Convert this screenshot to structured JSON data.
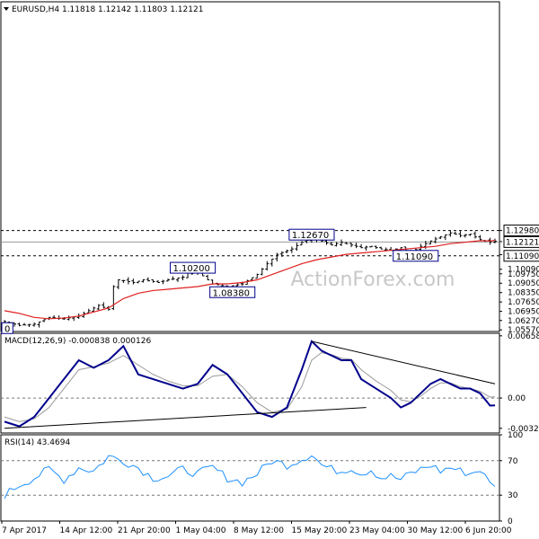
{
  "chart_data": [
    {
      "type": "candlestick",
      "title": "EURUSD,H4 1.11818 1.12142 1.11803 1.12121",
      "title_prefix_icon": "triangle-down-icon",
      "ylim": [
        1.0545,
        1.3003
      ],
      "price_ticks": [
        "1.12980",
        "1.12150",
        "1.11180",
        "1.10090",
        "1.09750",
        "1.09050",
        "1.08350",
        "1.07650",
        "1.06950",
        "1.06270",
        "1.05570"
      ],
      "current_price_tag": "1.12121",
      "key_levels": [
        "1.12980",
        "1.11090"
      ],
      "ma_color": "#e02020",
      "price_color": "#000000",
      "annotations": [
        {
          "label": "1.12670",
          "x": 62,
          "price": 1.1267
        },
        {
          "label": "1.11090",
          "x": 83,
          "price": 1.1109
        },
        {
          "label": "1.10200",
          "x": 38,
          "price": 1.102
        },
        {
          "label": "1.08380",
          "x": 46,
          "price": 1.0838
        },
        {
          "label": "0",
          "x": 0,
          "price": 1.057
        }
      ],
      "watermark": "ActionForex.com",
      "close_anchors": [
        [
          0,
          1.062
        ],
        [
          3,
          1.059
        ],
        [
          6,
          1.06
        ],
        [
          9,
          1.065
        ],
        [
          12,
          1.064
        ],
        [
          15,
          1.066
        ],
        [
          17,
          1.07
        ],
        [
          19,
          1.074
        ],
        [
          21,
          1.071
        ],
        [
          22,
          1.088
        ],
        [
          23,
          1.093
        ],
        [
          26,
          1.091
        ],
        [
          28,
          1.093
        ],
        [
          31,
          1.091
        ],
        [
          33,
          1.093
        ],
        [
          36,
          1.095
        ],
        [
          38,
          1.101
        ],
        [
          40,
          1.096
        ],
        [
          42,
          1.09
        ],
        [
          45,
          1.088
        ],
        [
          48,
          1.09
        ],
        [
          51,
          1.097
        ],
        [
          53,
          1.105
        ],
        [
          55,
          1.112
        ],
        [
          58,
          1.116
        ],
        [
          60,
          1.121
        ],
        [
          62,
          1.124
        ],
        [
          64,
          1.122
        ],
        [
          66,
          1.119
        ],
        [
          68,
          1.121
        ],
        [
          70,
          1.119
        ],
        [
          72,
          1.117
        ],
        [
          74,
          1.118
        ],
        [
          76,
          1.116
        ],
        [
          78,
          1.115
        ],
        [
          80,
          1.117
        ],
        [
          82,
          1.113
        ],
        [
          84,
          1.118
        ],
        [
          86,
          1.122
        ],
        [
          88,
          1.125
        ],
        [
          90,
          1.128
        ],
        [
          92,
          1.126
        ],
        [
          94,
          1.127
        ],
        [
          96,
          1.123
        ],
        [
          98,
          1.1212
        ]
      ],
      "ma_anchors": [
        [
          0,
          1.07
        ],
        [
          3,
          1.068
        ],
        [
          6,
          1.065
        ],
        [
          9,
          1.064
        ],
        [
          12,
          1.0645
        ],
        [
          15,
          1.066
        ],
        [
          18,
          1.069
        ],
        [
          21,
          1.072
        ],
        [
          24,
          1.079
        ],
        [
          27,
          1.083
        ],
        [
          30,
          1.085
        ],
        [
          33,
          1.086
        ],
        [
          36,
          1.087
        ],
        [
          39,
          1.088
        ],
        [
          42,
          1.09
        ],
        [
          45,
          1.09
        ],
        [
          48,
          1.091
        ],
        [
          51,
          1.093
        ],
        [
          54,
          1.097
        ],
        [
          57,
          1.101
        ],
        [
          60,
          1.105
        ],
        [
          63,
          1.108
        ],
        [
          66,
          1.11
        ],
        [
          69,
          1.112
        ],
        [
          72,
          1.113
        ],
        [
          75,
          1.114
        ],
        [
          78,
          1.115
        ],
        [
          81,
          1.116
        ],
        [
          84,
          1.117
        ],
        [
          87,
          1.118
        ],
        [
          90,
          1.12
        ],
        [
          93,
          1.121
        ],
        [
          96,
          1.1222
        ],
        [
          98,
          1.122
        ]
      ]
    },
    {
      "type": "line",
      "title": "MACD(12,26,9) -0.000838 0.000126",
      "ylim": [
        -0.0037,
        0.00685
      ],
      "ticks": [
        "0.006581",
        "0.00",
        "-0.003208"
      ],
      "main_color": "#00008b",
      "signal_color": "#9a9a9a",
      "trendline_color": "#000000",
      "main_anchors": [
        [
          0,
          -0.0025
        ],
        [
          3,
          -0.003
        ],
        [
          6,
          -0.002
        ],
        [
          9,
          0.0
        ],
        [
          12,
          0.002
        ],
        [
          15,
          0.004
        ],
        [
          18,
          0.0032
        ],
        [
          21,
          0.004
        ],
        [
          24,
          0.0055
        ],
        [
          27,
          0.0025
        ],
        [
          30,
          0.002
        ],
        [
          33,
          0.0015
        ],
        [
          36,
          0.001
        ],
        [
          39,
          0.0015
        ],
        [
          42,
          0.0035
        ],
        [
          45,
          0.0025
        ],
        [
          48,
          0.0005
        ],
        [
          51,
          -0.0015
        ],
        [
          54,
          -0.002
        ],
        [
          57,
          -0.001
        ],
        [
          60,
          0.003
        ],
        [
          62,
          0.006
        ],
        [
          64,
          0.005
        ],
        [
          66,
          0.0045
        ],
        [
          68,
          0.004
        ],
        [
          70,
          0.004
        ],
        [
          72,
          0.002
        ],
        [
          75,
          0.001
        ],
        [
          78,
          0.0
        ],
        [
          80,
          -0.001
        ],
        [
          82,
          -0.0005
        ],
        [
          84,
          0.0005
        ],
        [
          86,
          0.0015
        ],
        [
          88,
          0.002
        ],
        [
          90,
          0.0015
        ],
        [
          92,
          0.001
        ],
        [
          94,
          0.001
        ],
        [
          96,
          0.0005
        ],
        [
          98,
          -0.0008
        ]
      ],
      "signal_anchors": [
        [
          0,
          -0.002
        ],
        [
          3,
          -0.0025
        ],
        [
          6,
          -0.0022
        ],
        [
          9,
          -0.001
        ],
        [
          12,
          0.001
        ],
        [
          15,
          0.003
        ],
        [
          18,
          0.0033
        ],
        [
          21,
          0.0037
        ],
        [
          24,
          0.0045
        ],
        [
          27,
          0.0035
        ],
        [
          30,
          0.0025
        ],
        [
          33,
          0.0018
        ],
        [
          36,
          0.0013
        ],
        [
          39,
          0.0013
        ],
        [
          42,
          0.0023
        ],
        [
          45,
          0.0025
        ],
        [
          48,
          0.0012
        ],
        [
          51,
          -0.0005
        ],
        [
          54,
          -0.0015
        ],
        [
          57,
          -0.0012
        ],
        [
          60,
          0.0012
        ],
        [
          62,
          0.004
        ],
        [
          64,
          0.0048
        ],
        [
          66,
          0.0046
        ],
        [
          68,
          0.0042
        ],
        [
          70,
          0.0041
        ],
        [
          72,
          0.003
        ],
        [
          75,
          0.0018
        ],
        [
          78,
          0.0008
        ],
        [
          80,
          -0.0002
        ],
        [
          82,
          -0.0004
        ],
        [
          84,
          0.0002
        ],
        [
          86,
          0.001
        ],
        [
          88,
          0.0016
        ],
        [
          90,
          0.0016
        ],
        [
          92,
          0.0012
        ],
        [
          94,
          0.001
        ],
        [
          96,
          0.0007
        ],
        [
          98,
          0.0001
        ]
      ],
      "trendlines": [
        {
          "from": [
            0,
            -0.0032
          ],
          "to": [
            73,
            -0.001
          ]
        },
        {
          "from": [
            62,
            0.006
          ],
          "to": [
            99,
            0.0015
          ]
        }
      ]
    },
    {
      "type": "line",
      "title": "RSI(14) 43.4694",
      "ylim": [
        0,
        100
      ],
      "ticks": [
        "100",
        "70",
        "30",
        "0"
      ],
      "levels": [
        70,
        30
      ],
      "line_color": "#1e90ff",
      "anchors": [
        [
          0,
          30
        ],
        [
          3,
          42
        ],
        [
          6,
          50
        ],
        [
          9,
          60
        ],
        [
          12,
          48
        ],
        [
          15,
          62
        ],
        [
          18,
          58
        ],
        [
          21,
          75
        ],
        [
          24,
          70
        ],
        [
          27,
          62
        ],
        [
          30,
          50
        ],
        [
          33,
          52
        ],
        [
          36,
          60
        ],
        [
          39,
          55
        ],
        [
          42,
          62
        ],
        [
          45,
          50
        ],
        [
          48,
          45
        ],
        [
          51,
          55
        ],
        [
          54,
          70
        ],
        [
          57,
          65
        ],
        [
          60,
          72
        ],
        [
          62,
          78
        ],
        [
          64,
          65
        ],
        [
          66,
          60
        ],
        [
          68,
          58
        ],
        [
          70,
          62
        ],
        [
          72,
          55
        ],
        [
          74,
          60
        ],
        [
          76,
          50
        ],
        [
          78,
          52
        ],
        [
          80,
          48
        ],
        [
          82,
          55
        ],
        [
          84,
          60
        ],
        [
          86,
          65
        ],
        [
          88,
          58
        ],
        [
          90,
          62
        ],
        [
          92,
          58
        ],
        [
          94,
          55
        ],
        [
          96,
          60
        ],
        [
          98,
          43
        ]
      ]
    }
  ],
  "x_axis": {
    "tick_labels": [
      "7 Apr 2017",
      "14 Apr 12:00",
      "21 Apr 20:00",
      "1 May 04:00",
      "8 May 12:00",
      "15 May 20:00",
      "23 May 04:00",
      "30 May 12:00",
      "6 Jun 20:00"
    ]
  }
}
